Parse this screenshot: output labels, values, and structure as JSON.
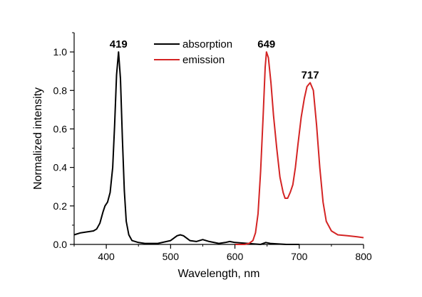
{
  "chart_data": {
    "type": "line",
    "title": "",
    "xlabel": "Wavelength, nm",
    "ylabel": "Normalized intensity",
    "xlim": [
      350,
      800
    ],
    "ylim": [
      0.0,
      1.1
    ],
    "x_ticks": [
      400,
      500,
      600,
      700,
      800
    ],
    "y_ticks": [
      0.0,
      0.2,
      0.4,
      0.6,
      0.8,
      1.0
    ],
    "x_tick_labels": [
      "400",
      "500",
      "600",
      "700",
      "800"
    ],
    "y_tick_labels": [
      "0.0",
      "0.2",
      "0.4",
      "0.6",
      "0.8",
      "1.0"
    ],
    "grid": false,
    "legend_position": "top-center",
    "series": [
      {
        "name": "absorption",
        "color": "#000000",
        "points": [
          [
            350,
            0.05
          ],
          [
            360,
            0.06
          ],
          [
            370,
            0.065
          ],
          [
            380,
            0.07
          ],
          [
            385,
            0.08
          ],
          [
            390,
            0.11
          ],
          [
            395,
            0.17
          ],
          [
            398,
            0.2
          ],
          [
            402,
            0.22
          ],
          [
            406,
            0.27
          ],
          [
            410,
            0.4
          ],
          [
            413,
            0.62
          ],
          [
            416,
            0.88
          ],
          [
            419,
            1.0
          ],
          [
            422,
            0.86
          ],
          [
            425,
            0.55
          ],
          [
            428,
            0.28
          ],
          [
            431,
            0.12
          ],
          [
            435,
            0.05
          ],
          [
            440,
            0.02
          ],
          [
            450,
            0.01
          ],
          [
            460,
            0.005
          ],
          [
            480,
            0.005
          ],
          [
            500,
            0.02
          ],
          [
            510,
            0.045
          ],
          [
            515,
            0.05
          ],
          [
            520,
            0.045
          ],
          [
            530,
            0.02
          ],
          [
            540,
            0.015
          ],
          [
            550,
            0.025
          ],
          [
            560,
            0.015
          ],
          [
            575,
            0.005
          ],
          [
            585,
            0.01
          ],
          [
            592,
            0.015
          ],
          [
            600,
            0.01
          ],
          [
            620,
            0.005
          ],
          [
            640,
            0.0
          ],
          [
            648,
            0.01
          ],
          [
            655,
            0.005
          ],
          [
            680,
            0.0
          ],
          [
            700,
            0.0
          ]
        ]
      },
      {
        "name": "emission",
        "color": "#d42424",
        "points": [
          [
            600,
            0.0
          ],
          [
            615,
            0.0
          ],
          [
            622,
            0.005
          ],
          [
            628,
            0.02
          ],
          [
            632,
            0.06
          ],
          [
            636,
            0.16
          ],
          [
            640,
            0.38
          ],
          [
            644,
            0.68
          ],
          [
            647,
            0.92
          ],
          [
            649,
            1.0
          ],
          [
            652,
            0.97
          ],
          [
            656,
            0.84
          ],
          [
            660,
            0.67
          ],
          [
            665,
            0.5
          ],
          [
            670,
            0.35
          ],
          [
            675,
            0.27
          ],
          [
            678,
            0.24
          ],
          [
            682,
            0.24
          ],
          [
            686,
            0.27
          ],
          [
            690,
            0.31
          ],
          [
            694,
            0.4
          ],
          [
            698,
            0.52
          ],
          [
            703,
            0.66
          ],
          [
            708,
            0.76
          ],
          [
            712,
            0.82
          ],
          [
            717,
            0.84
          ],
          [
            722,
            0.8
          ],
          [
            727,
            0.62
          ],
          [
            732,
            0.4
          ],
          [
            737,
            0.22
          ],
          [
            742,
            0.12
          ],
          [
            750,
            0.07
          ],
          [
            760,
            0.05
          ],
          [
            775,
            0.045
          ],
          [
            790,
            0.04
          ],
          [
            800,
            0.035
          ]
        ]
      }
    ],
    "annotations": [
      {
        "text": "419",
        "x": 419,
        "y": 1.0
      },
      {
        "text": "649",
        "x": 649,
        "y": 1.0
      },
      {
        "text": "717",
        "x": 717,
        "y": 0.84
      }
    ]
  }
}
